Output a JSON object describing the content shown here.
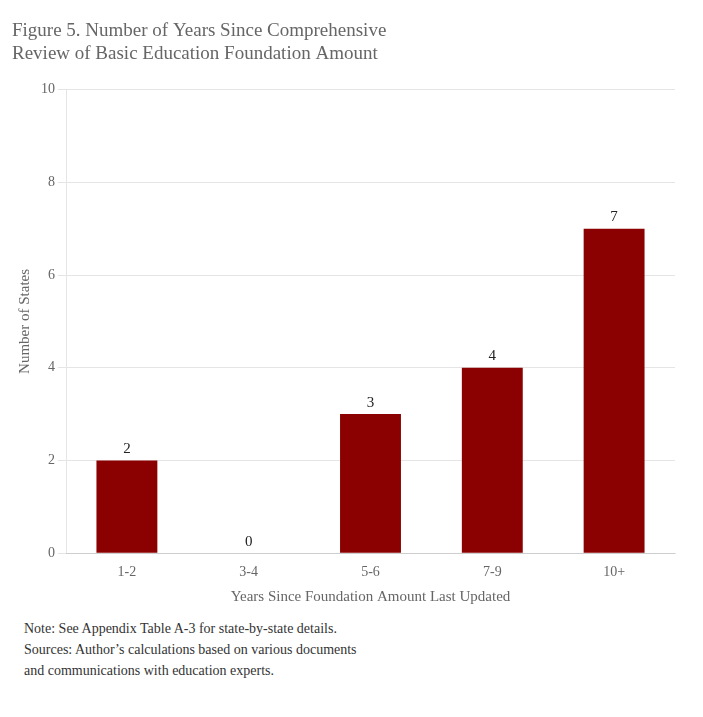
{
  "chart_data": {
    "type": "bar",
    "title": [
      "Figure 5. Number of Years Since Comprehensive",
      "Review of Basic Education Foundation Amount"
    ],
    "xlabel": "Years Since Foundation Amount Last Updated",
    "ylabel": "Number of States",
    "categories": [
      "1-2",
      "3-4",
      "5-6",
      "7-9",
      "10+"
    ],
    "values": [
      2,
      0,
      3,
      4,
      7
    ],
    "color": "#8B0000",
    "ylim": [
      0,
      10
    ],
    "yticks": [
      0,
      2,
      4,
      6,
      8,
      10
    ],
    "grid": true,
    "data_labels": true,
    "annotations": [
      "Note: See Appendix Table A-3 for state-by-state details.",
      "Sources: Author’s calculations based on various documents",
      "and communications with education experts."
    ]
  }
}
